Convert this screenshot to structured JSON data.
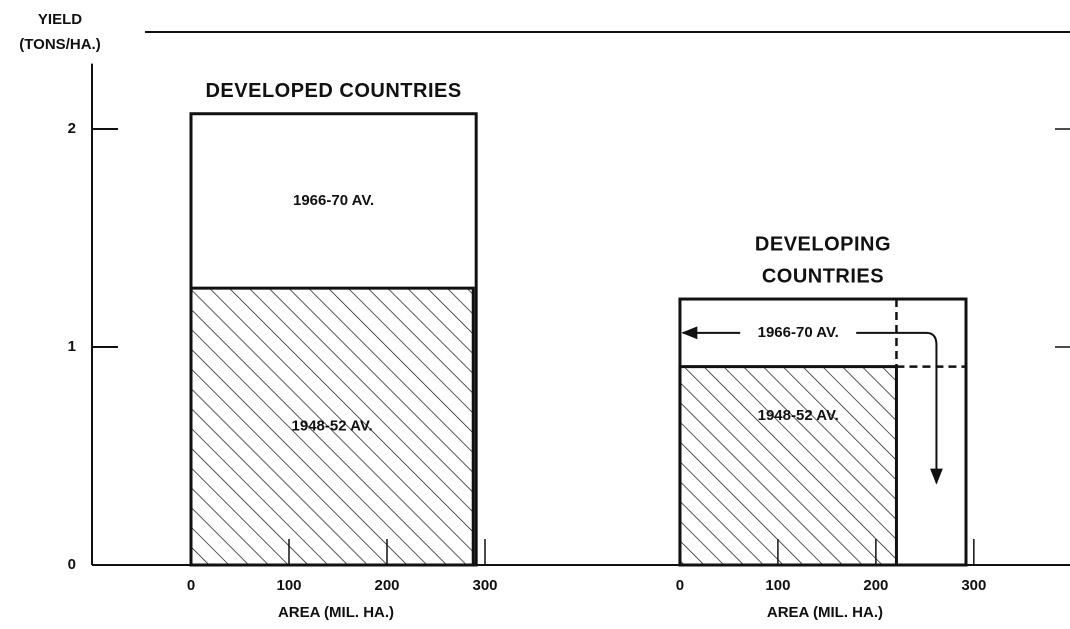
{
  "chart_data": [
    {
      "type": "area-rect",
      "title": [
        "DEVELOPED COUNTRIES"
      ],
      "ylabel": [
        "YIELD",
        "(TONS/HA.)"
      ],
      "xlabel": "AREA (MIL. HA.)",
      "xlim": [
        -100,
        350
      ],
      "xticks": [
        0,
        100,
        200,
        300
      ],
      "ylim": [
        0,
        2.3
      ],
      "yticks": [
        0,
        1,
        2
      ],
      "series": [
        {
          "name": "1966-70 AV.",
          "values": [
            2.07
          ],
          "widths": [
            291
          ],
          "hatch": false
        },
        {
          "name": "1948-52 AV.",
          "values": [
            1.27
          ],
          "widths": [
            288
          ],
          "hatch": true
        }
      ]
    },
    {
      "type": "area-rect",
      "title": [
        "DEVELOPING",
        "COUNTRIES"
      ],
      "xlabel": "AREA (MIL. HA.)",
      "xlim": [
        -100,
        390
      ],
      "xticks": [
        0,
        100,
        200,
        300
      ],
      "ylim": [
        0,
        2.3
      ],
      "yticks": [
        0,
        1,
        2
      ],
      "series": [
        {
          "name": "1966-70 AV.",
          "values": [
            1.22
          ],
          "widths": [
            292
          ],
          "hatch": false
        },
        {
          "name": "1948-52 AV.",
          "values": [
            0.91
          ],
          "widths": [
            221
          ],
          "hatch": true
        }
      ]
    }
  ]
}
